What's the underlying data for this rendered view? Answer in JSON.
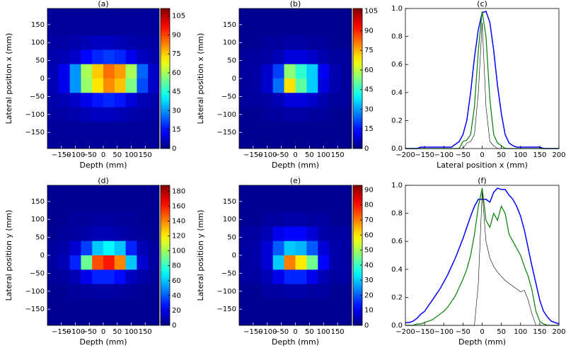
{
  "chart_data": [
    {
      "type": "heatmap",
      "title": "(a)",
      "xlabel": "Depth (mm)",
      "ylabel": "Lateral position x (mm)",
      "xlim": [
        -200,
        200
      ],
      "ylim": [
        -195,
        195
      ],
      "xticks": [
        {
          "value": -150,
          "label": "−150"
        },
        {
          "value": -100,
          "label": "−100"
        },
        {
          "value": -50,
          "label": "−50"
        },
        0,
        50,
        100,
        150
      ],
      "yticks": [
        {
          "value": -150,
          "label": "−150"
        },
        {
          "value": -100,
          "label": "−100"
        },
        {
          "value": -50,
          "label": "−50"
        },
        0,
        50,
        100,
        150
      ],
      "x": [
        -180,
        -140,
        -100,
        -60,
        -20,
        20,
        60,
        100,
        140,
        180
      ],
      "y": [
        180,
        140,
        100,
        60,
        20,
        -20,
        -60,
        -100,
        -140,
        -180
      ],
      "z": [
        [
          3,
          3,
          3,
          3,
          3,
          3,
          3,
          3,
          3,
          3
        ],
        [
          3,
          3,
          3,
          3,
          3,
          3,
          3,
          3,
          3,
          3
        ],
        [
          4,
          4,
          5,
          6,
          7,
          7,
          6,
          5,
          4,
          4
        ],
        [
          5,
          6,
          8,
          14,
          18,
          20,
          18,
          12,
          7,
          5
        ],
        [
          6,
          12,
          30,
          60,
          75,
          85,
          80,
          60,
          25,
          8
        ],
        [
          6,
          12,
          30,
          58,
          72,
          82,
          76,
          55,
          22,
          8
        ],
        [
          5,
          6,
          8,
          12,
          16,
          18,
          16,
          10,
          6,
          5
        ],
        [
          4,
          4,
          5,
          6,
          7,
          7,
          6,
          5,
          4,
          4
        ],
        [
          3,
          3,
          3,
          3,
          3,
          3,
          3,
          3,
          3,
          3
        ],
        [
          3,
          3,
          3,
          3,
          3,
          3,
          3,
          3,
          3,
          3
        ]
      ],
      "colorbar": {
        "lim": [
          0,
          111
        ],
        "ticks": [
          0,
          15,
          30,
          45,
          60,
          75,
          90,
          105
        ]
      }
    },
    {
      "type": "heatmap",
      "title": "(b)",
      "xlabel": "Depth (mm)",
      "ylabel": "Lateral position x (mm)",
      "xlim": [
        -200,
        200
      ],
      "ylim": [
        -195,
        195
      ],
      "xticks": [
        {
          "value": -150,
          "label": "−150"
        },
        {
          "value": -100,
          "label": "−100"
        },
        {
          "value": -50,
          "label": "−50"
        },
        0,
        50,
        100,
        150
      ],
      "yticks": [
        {
          "value": -150,
          "label": "−150"
        },
        {
          "value": -100,
          "label": "−100"
        },
        {
          "value": -50,
          "label": "−50"
        },
        0,
        50,
        100,
        150
      ],
      "x": [
        -180,
        -140,
        -100,
        -60,
        -20,
        20,
        60,
        100,
        140,
        180
      ],
      "y": [
        180,
        140,
        100,
        60,
        20,
        -20,
        -60,
        -100,
        -140,
        -180
      ],
      "z": [
        [
          2,
          2,
          2,
          2,
          2,
          2,
          2,
          2,
          2,
          2
        ],
        [
          2,
          2,
          2,
          2,
          2,
          2,
          2,
          2,
          2,
          2
        ],
        [
          2,
          2,
          3,
          3,
          4,
          4,
          3,
          3,
          2,
          2
        ],
        [
          3,
          3,
          4,
          6,
          10,
          10,
          8,
          5,
          3,
          3
        ],
        [
          3,
          4,
          8,
          20,
          55,
          45,
          35,
          12,
          5,
          3
        ],
        [
          3,
          4,
          8,
          25,
          70,
          50,
          35,
          10,
          5,
          3
        ],
        [
          3,
          3,
          4,
          6,
          10,
          10,
          8,
          5,
          3,
          3
        ],
        [
          2,
          2,
          3,
          3,
          4,
          4,
          3,
          3,
          2,
          2
        ],
        [
          2,
          2,
          2,
          2,
          2,
          2,
          2,
          2,
          2,
          2
        ],
        [
          2,
          2,
          2,
          2,
          2,
          2,
          2,
          2,
          2,
          2
        ]
      ],
      "colorbar": {
        "lim": [
          0,
          107
        ],
        "ticks": [
          0,
          15,
          30,
          45,
          60,
          75,
          90,
          105
        ]
      }
    },
    {
      "type": "line",
      "title": "(c)",
      "xlabel": "Lateral position x (mm)",
      "xlim": [
        -200,
        200
      ],
      "ylim": [
        0,
        1
      ],
      "xticks": [
        {
          "value": -200,
          "label": "−200"
        },
        {
          "value": -150,
          "label": "−150"
        },
        {
          "value": -100,
          "label": "−100"
        },
        {
          "value": -50,
          "label": "−50"
        },
        0,
        50,
        100,
        150,
        200
      ],
      "yticks": [
        {
          "value": 0,
          "label": "0.0"
        },
        0.2,
        0.4,
        0.6,
        0.8,
        {
          "value": 1,
          "label": "1.0"
        }
      ],
      "x": [
        -200,
        -190,
        -180,
        -170,
        -160,
        -150,
        -140,
        -130,
        -120,
        -110,
        -100,
        -90,
        -80,
        -70,
        -60,
        -50,
        -40,
        -30,
        -20,
        -10,
        0,
        10,
        20,
        30,
        40,
        50,
        60,
        70,
        80,
        90,
        100,
        110,
        120,
        130,
        140,
        150,
        160,
        170,
        180,
        190,
        200
      ],
      "series": [
        {
          "color": "#0000ff",
          "width": 1.5,
          "values": [
            0,
            0,
            0,
            0,
            0.01,
            0.01,
            0.01,
            0.01,
            0.01,
            0.01,
            0.01,
            0.01,
            0.01,
            0.03,
            0.05,
            0.1,
            0.2,
            0.4,
            0.65,
            0.85,
            0.97,
            0.98,
            0.9,
            0.7,
            0.45,
            0.25,
            0.1,
            0.04,
            0.02,
            0.01,
            0.01,
            0.01,
            0.01,
            0.01,
            0.01,
            0.01,
            0,
            0,
            0,
            0,
            0
          ]
        },
        {
          "color": "#008000",
          "width": 1.2,
          "values": [
            0,
            0,
            0,
            0,
            0,
            0,
            0,
            0,
            0,
            0,
            0,
            0,
            0,
            0,
            0,
            0.05,
            0.06,
            0.1,
            0.3,
            0.7,
            0.98,
            0.8,
            0.35,
            0.1,
            0.04,
            0.02,
            0,
            0,
            0,
            0,
            0,
            0,
            0,
            0,
            0,
            0,
            0,
            0,
            0,
            0,
            0
          ]
        },
        {
          "color": "#000000",
          "width": 0.6,
          "values": [
            0,
            0,
            0,
            0,
            0,
            0,
            0,
            0,
            0,
            0,
            0,
            0,
            0,
            0,
            0,
            0,
            0.04,
            0.05,
            0.1,
            0.4,
            0.9,
            0.3,
            0.05,
            0.02,
            0,
            0,
            0,
            0,
            0,
            0,
            0,
            0,
            0,
            0,
            0,
            0,
            0,
            0,
            0,
            0,
            0
          ]
        }
      ]
    },
    {
      "type": "heatmap",
      "title": "(d)",
      "xlabel": "Depth (mm)",
      "ylabel": "Lateral position y (mm)",
      "xlim": [
        -200,
        200
      ],
      "ylim": [
        -195,
        195
      ],
      "xticks": [
        {
          "value": -150,
          "label": "−150"
        },
        {
          "value": -100,
          "label": "−100"
        },
        {
          "value": -50,
          "label": "−50"
        },
        0,
        50,
        100,
        150
      ],
      "yticks": [
        {
          "value": -150,
          "label": "−150"
        },
        {
          "value": -100,
          "label": "−100"
        },
        {
          "value": -50,
          "label": "−50"
        },
        0,
        50,
        100,
        150
      ],
      "x": [
        -180,
        -140,
        -100,
        -60,
        -20,
        20,
        60,
        100,
        140,
        180
      ],
      "y": [
        180,
        140,
        100,
        60,
        20,
        -20,
        -60,
        -100,
        -140,
        -180
      ],
      "z": [
        [
          4,
          4,
          4,
          4,
          4,
          4,
          4,
          4,
          4,
          4
        ],
        [
          4,
          4,
          4,
          4,
          4,
          4,
          4,
          4,
          4,
          4
        ],
        [
          4,
          4,
          5,
          5,
          6,
          6,
          5,
          5,
          4,
          4
        ],
        [
          4,
          5,
          6,
          8,
          10,
          10,
          8,
          6,
          5,
          4
        ],
        [
          6,
          8,
          15,
          35,
          60,
          70,
          60,
          30,
          10,
          6
        ],
        [
          6,
          10,
          30,
          90,
          150,
          160,
          140,
          60,
          15,
          6
        ],
        [
          5,
          6,
          10,
          20,
          30,
          30,
          25,
          12,
          8,
          5
        ],
        [
          4,
          4,
          5,
          6,
          7,
          7,
          6,
          5,
          4,
          4
        ],
        [
          4,
          4,
          4,
          4,
          4,
          4,
          4,
          4,
          4,
          4
        ],
        [
          4,
          4,
          4,
          4,
          4,
          4,
          4,
          4,
          4,
          4
        ]
      ],
      "colorbar": {
        "lim": [
          0,
          188
        ],
        "ticks": [
          0,
          20,
          40,
          60,
          80,
          100,
          120,
          140,
          160,
          180
        ]
      }
    },
    {
      "type": "heatmap",
      "title": "(e)",
      "xlabel": "Depth (mm)",
      "ylabel": "Lateral position y (mm)",
      "xlim": [
        -200,
        200
      ],
      "ylim": [
        -195,
        195
      ],
      "xticks": [
        {
          "value": -150,
          "label": "−150"
        },
        {
          "value": -100,
          "label": "−100"
        },
        {
          "value": -50,
          "label": "−50"
        },
        0,
        50,
        100,
        150
      ],
      "yticks": [
        {
          "value": -150,
          "label": "−150"
        },
        {
          "value": -100,
          "label": "−100"
        },
        {
          "value": -50,
          "label": "−50"
        },
        0,
        50,
        100,
        150
      ],
      "x": [
        -180,
        -140,
        -100,
        -60,
        -20,
        20,
        60,
        100,
        140,
        180
      ],
      "y": [
        180,
        140,
        100,
        60,
        20,
        -20,
        -60,
        -100,
        -140,
        -180
      ],
      "z": [
        [
          2,
          2,
          2,
          2,
          2,
          2,
          2,
          2,
          2,
          2
        ],
        [
          2,
          2,
          2,
          2,
          2,
          2,
          2,
          2,
          2,
          2
        ],
        [
          2,
          2,
          3,
          3,
          4,
          4,
          3,
          3,
          2,
          2
        ],
        [
          3,
          3,
          5,
          10,
          12,
          12,
          8,
          4,
          3,
          3
        ],
        [
          3,
          4,
          8,
          20,
          30,
          28,
          20,
          8,
          4,
          3
        ],
        [
          3,
          4,
          8,
          30,
          70,
          60,
          45,
          12,
          4,
          3
        ],
        [
          3,
          3,
          5,
          10,
          15,
          15,
          10,
          5,
          3,
          3
        ],
        [
          2,
          2,
          3,
          3,
          4,
          4,
          3,
          3,
          2,
          2
        ],
        [
          2,
          2,
          2,
          2,
          2,
          2,
          2,
          2,
          2,
          2
        ],
        [
          2,
          2,
          2,
          2,
          2,
          2,
          2,
          2,
          2,
          2
        ]
      ],
      "colorbar": {
        "lim": [
          0,
          93
        ],
        "ticks": [
          0,
          10,
          20,
          30,
          40,
          50,
          60,
          70,
          80,
          90
        ]
      }
    },
    {
      "type": "line",
      "title": "(f)",
      "xlabel": "Depth (mm)",
      "xlim": [
        -200,
        200
      ],
      "ylim": [
        0,
        1
      ],
      "xticks": [
        {
          "value": -200,
          "label": "−200"
        },
        {
          "value": -150,
          "label": "−150"
        },
        {
          "value": -100,
          "label": "−100"
        },
        {
          "value": -50,
          "label": "−50"
        },
        0,
        50,
        100,
        150,
        200
      ],
      "yticks": [
        {
          "value": 0,
          "label": "0.0"
        },
        0.2,
        0.4,
        0.6,
        0.8,
        {
          "value": 1,
          "label": "1.0"
        }
      ],
      "x": [
        -200,
        -190,
        -180,
        -170,
        -160,
        -150,
        -140,
        -130,
        -120,
        -110,
        -100,
        -90,
        -80,
        -70,
        -60,
        -50,
        -40,
        -30,
        -20,
        -10,
        0,
        10,
        20,
        30,
        40,
        50,
        60,
        70,
        80,
        90,
        100,
        110,
        120,
        130,
        140,
        150,
        160,
        170,
        180,
        190,
        200
      ],
      "series": [
        {
          "color": "#0000ff",
          "width": 1.5,
          "values": [
            0.02,
            0.02,
            0.03,
            0.05,
            0.08,
            0.1,
            0.14,
            0.18,
            0.22,
            0.26,
            0.31,
            0.36,
            0.42,
            0.48,
            0.55,
            0.62,
            0.7,
            0.78,
            0.85,
            0.9,
            0.9,
            0.9,
            0.88,
            0.95,
            0.98,
            0.97,
            0.97,
            0.93,
            0.9,
            0.85,
            0.78,
            0.68,
            0.55,
            0.42,
            0.3,
            0.18,
            0.1,
            0.06,
            0.03,
            0.02,
            0.01
          ]
        },
        {
          "color": "#008000",
          "width": 1.2,
          "values": [
            0,
            0,
            0,
            0.01,
            0.01,
            0.02,
            0.03,
            0.04,
            0.06,
            0.08,
            0.1,
            0.13,
            0.17,
            0.21,
            0.27,
            0.33,
            0.4,
            0.5,
            0.65,
            0.85,
            0.98,
            0.75,
            0.7,
            0.8,
            0.75,
            0.85,
            0.8,
            0.65,
            0.6,
            0.55,
            0.5,
            0.42,
            0.35,
            0.25,
            0.1,
            0.03,
            0.01,
            0,
            0,
            0,
            0
          ]
        },
        {
          "color": "#000000",
          "width": 0.6,
          "values": [
            0,
            0,
            0,
            0,
            0,
            0,
            0,
            0,
            0,
            0,
            0,
            0,
            0,
            0,
            0,
            0,
            0,
            0,
            0,
            0.3,
            0.95,
            0.6,
            0.48,
            0.42,
            0.38,
            0.35,
            0.32,
            0.3,
            0.28,
            0.26,
            0.24,
            0.25,
            0.18,
            0.08,
            0,
            0,
            0,
            0,
            0,
            0,
            0
          ]
        }
      ]
    }
  ]
}
